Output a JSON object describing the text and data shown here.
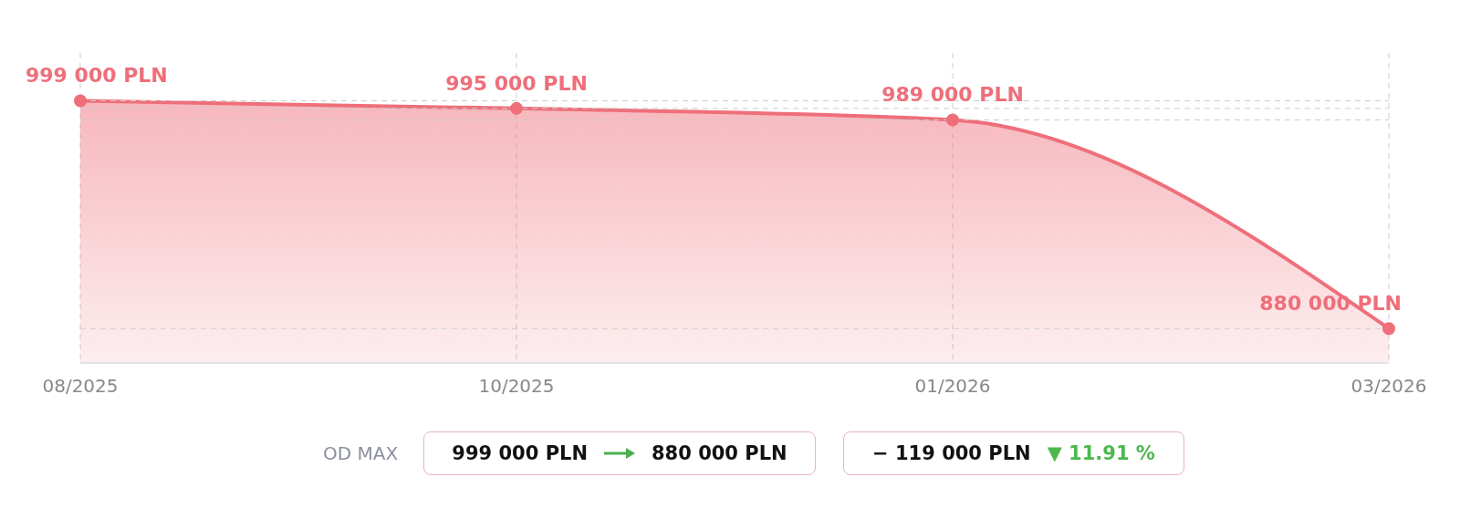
{
  "chart_data": {
    "type": "area",
    "categories": [
      "08/2025",
      "10/2025",
      "01/2026",
      "03/2026"
    ],
    "series": [
      {
        "color": "#ee6f7a",
        "values": [
          999000,
          995000,
          989000,
          880000
        ],
        "value_labels": [
          "999 000 PLN",
          "995 000 PLN",
          "989 000 PLN",
          "880 000 PLN"
        ]
      }
    ],
    "ref_lines": [
      {
        "axis": "y",
        "value": 999000,
        "color": "#cccccc",
        "line_style": "dashed"
      },
      {
        "axis": "y",
        "value": 995000,
        "color": "#cccccc",
        "line_style": "dashed"
      },
      {
        "axis": "y",
        "value": 989000,
        "color": "#cccccc",
        "line_style": "dashed"
      },
      {
        "axis": "y",
        "value": 880000,
        "color": "#cccccc",
        "line_style": "dashed"
      }
    ],
    "ylim": [
      862000,
      1024000
    ],
    "tick_labels": "x",
    "grid": "x",
    "legend": false,
    "marker": "circle",
    "line_style": "solid",
    "annotations": [
      "OD MAX",
      "999 000 PLN",
      "880 000 PLN",
      "− 119 000 PLN",
      "▼ 11.91 %"
    ]
  }
}
